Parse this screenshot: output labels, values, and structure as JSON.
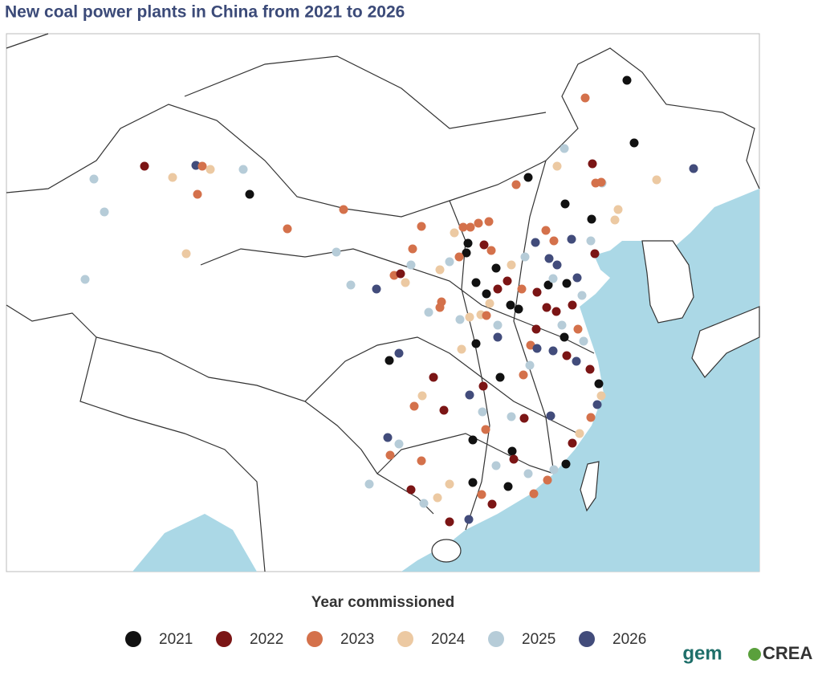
{
  "title": "New coal power plants in China from 2021 to 2026",
  "legend": {
    "title": "Year commissioned",
    "items": [
      {
        "label": "2021",
        "color": "#111111"
      },
      {
        "label": "2022",
        "color": "#7b1515"
      },
      {
        "label": "2023",
        "color": "#d4714b"
      },
      {
        "label": "2024",
        "color": "#ecc9a2"
      },
      {
        "label": "2025",
        "color": "#b6ccd8"
      },
      {
        "label": "2026",
        "color": "#424c7b"
      }
    ]
  },
  "logos": {
    "gem": "gem",
    "crea": "CREA"
  }
}
